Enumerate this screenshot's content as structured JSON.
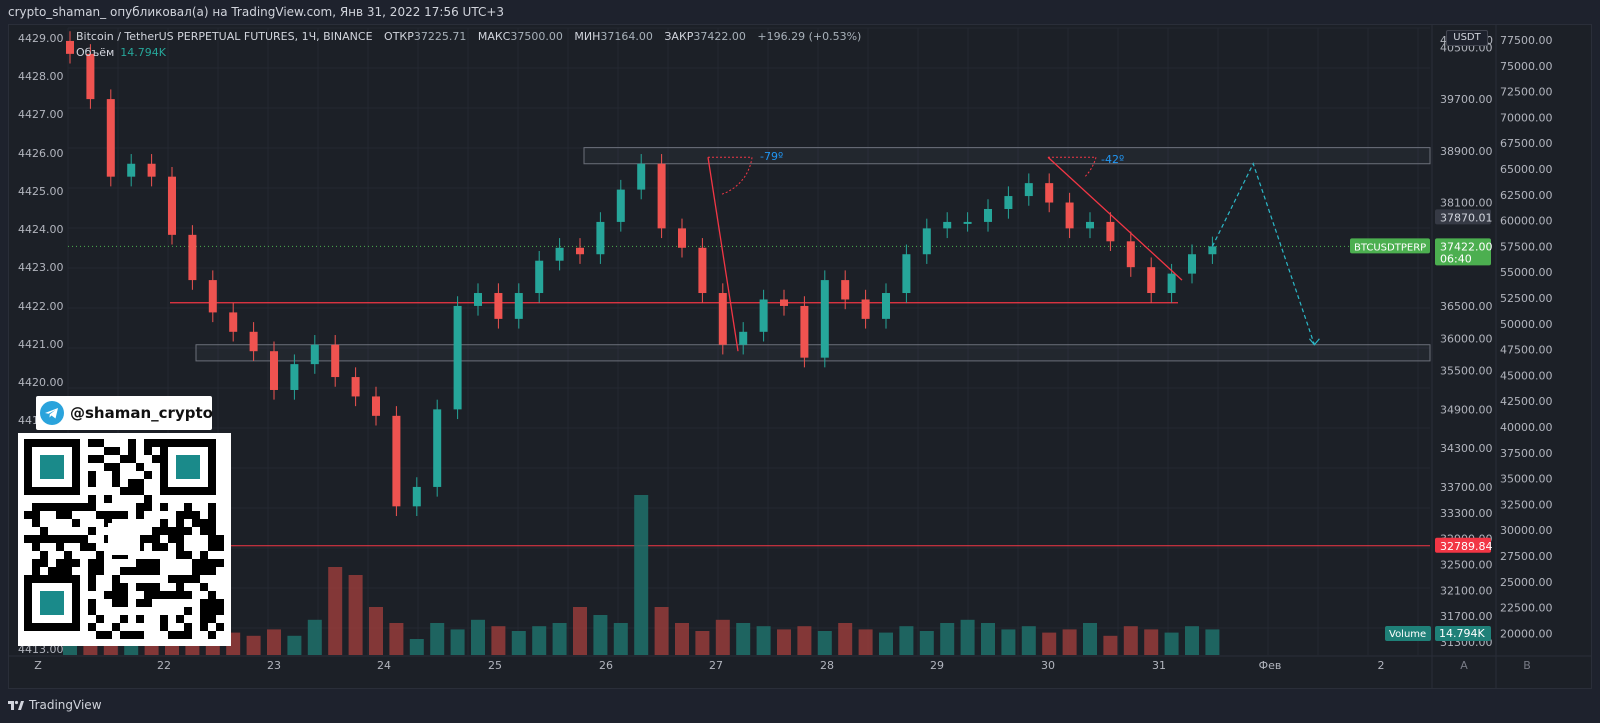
{
  "caption": "crypto_shaman_ опубликовал(а) на TradingView.com, Янв 31, 2022 17:56 UTC+3",
  "legend": {
    "symbol": "Bitcoin / TetherUS PERPETUAL FUTURES, 1Ч, BINANCE",
    "open_label": "ОТКР",
    "open_value": "37225.71",
    "high_label": "МАКС",
    "high_value": "37500.00",
    "low_label": "МИН",
    "low_value": "37164.00",
    "close_label": "ЗАКР",
    "close_value": "37422.00",
    "change": "+196.29 (+0.53%)",
    "volume_label": "Объём",
    "volume_value": "14.794K"
  },
  "currency_badge": "USDT",
  "telegram_handle": "@shaman_crypto",
  "footer_brand": "TradingView",
  "colors": {
    "up": "#26a69a",
    "down": "#ef5350",
    "volume_up": "#1f6b67",
    "volume_down": "#8f3a3a",
    "level_red": "#f23645",
    "annotation_blue": "#2196f3",
    "price_green": "#4caf50",
    "projection": "#2bb8c8"
  },
  "chart_data": {
    "type": "candlestick",
    "title": "Bitcoin / TetherUS PERPETUAL FUTURES, 1Ч, BINANCE",
    "x_ticks": [
      "Z",
      "22",
      "23",
      "24",
      "25",
      "26",
      "27",
      "28",
      "29",
      "30",
      "31",
      "Фев",
      "2"
    ],
    "pane_labels": [
      "A",
      "B"
    ],
    "left_axis_ticks": [
      "4429.00",
      "4428.00",
      "4427.00",
      "4426.00",
      "4425.00",
      "4424.00",
      "4423.00",
      "4422.00",
      "4421.00",
      "4420.00",
      "4419.00",
      "4413.00"
    ],
    "price_axis_ticks": [
      "40500.00",
      "39700.00",
      "38900.00",
      "38100.00",
      "37870.01",
      "36500.00",
      "36000.00",
      "35500.00",
      "34900.00",
      "34300.00",
      "33700.00",
      "33300.00",
      "32900.00",
      "32500.00",
      "32100.00",
      "31700.00",
      "31300.00"
    ],
    "price_axis_top_label": "4",
    "right_axis_ticks": [
      "77500.00",
      "75000.00",
      "72500.00",
      "70000.00",
      "67500.00",
      "65000.00",
      "62500.00",
      "60000.00",
      "57500.00",
      "55000.00",
      "52500.00",
      "50000.00",
      "47500.00",
      "45000.00",
      "42500.00",
      "40000.00",
      "37500.00",
      "35000.00",
      "32500.00",
      "30000.00",
      "27500.00",
      "25000.00",
      "22500.00",
      "20000.00"
    ],
    "right_axis_top_label": "0",
    "price_labels": {
      "current_symbol": "BTCUSDTPERP",
      "current_price": "37422.00",
      "countdown": "06:40",
      "level_label": "37870.01",
      "support_label": "32789.84"
    },
    "volume_label": "Volume",
    "volume_value": "14.794K",
    "annotations": [
      "-79º",
      "-42º"
    ],
    "levels": {
      "resistance_zone_top": 38950,
      "resistance_zone_bottom": 38700,
      "red_level": 36550,
      "support_zone_top": 35900,
      "support_zone_bottom": 35650,
      "bottom_red_level": 32789.84
    },
    "price_series": [
      [
        0,
        40400
      ],
      [
        1,
        39700
      ],
      [
        2,
        38500
      ],
      [
        3,
        38700
      ],
      [
        4,
        38500
      ],
      [
        5,
        37600
      ],
      [
        6,
        36900
      ],
      [
        7,
        36400
      ],
      [
        8,
        36100
      ],
      [
        9,
        35800
      ],
      [
        10,
        35200
      ],
      [
        11,
        35600
      ],
      [
        12,
        35900
      ],
      [
        13,
        35400
      ],
      [
        14,
        35100
      ],
      [
        15,
        34800
      ],
      [
        16,
        33400
      ],
      [
        17,
        33700
      ],
      [
        18,
        34900
      ],
      [
        19,
        36500
      ],
      [
        20,
        36700
      ],
      [
        21,
        36300
      ],
      [
        22,
        36700
      ],
      [
        23,
        37200
      ],
      [
        24,
        37400
      ],
      [
        25,
        37300
      ],
      [
        26,
        37800
      ],
      [
        27,
        38300
      ],
      [
        28,
        38700
      ],
      [
        29,
        37700
      ],
      [
        30,
        37400
      ],
      [
        31,
        36700
      ],
      [
        32,
        35900
      ],
      [
        33,
        36100
      ],
      [
        34,
        36600
      ],
      [
        35,
        36500
      ],
      [
        36,
        35700
      ],
      [
        37,
        36900
      ],
      [
        38,
        36600
      ],
      [
        39,
        36300
      ],
      [
        40,
        36700
      ],
      [
        41,
        37300
      ],
      [
        42,
        37700
      ],
      [
        43,
        37800
      ],
      [
        44,
        37800
      ],
      [
        45,
        38000
      ],
      [
        46,
        38200
      ],
      [
        47,
        38400
      ],
      [
        48,
        38100
      ],
      [
        49,
        37700
      ],
      [
        50,
        37800
      ],
      [
        51,
        37500
      ],
      [
        52,
        37100
      ],
      [
        53,
        36700
      ],
      [
        54,
        37000
      ],
      [
        55,
        37300
      ],
      [
        56,
        37422
      ]
    ],
    "projection": [
      [
        56,
        37422
      ],
      [
        58,
        38700
      ],
      [
        61,
        35900
      ]
    ],
    "volume": [
      0.25,
      0.15,
      0.12,
      0.2,
      0.12,
      0.1,
      0.18,
      0.15,
      0.14,
      0.12,
      0.16,
      0.12,
      0.22,
      0.55,
      0.5,
      0.3,
      0.2,
      0.1,
      0.2,
      0.16,
      0.22,
      0.18,
      0.15,
      0.18,
      0.2,
      0.3,
      0.25,
      0.2,
      1.0,
      0.3,
      0.2,
      0.15,
      0.22,
      0.2,
      0.18,
      0.16,
      0.18,
      0.15,
      0.2,
      0.16,
      0.14,
      0.18,
      0.15,
      0.2,
      0.22,
      0.2,
      0.16,
      0.18,
      0.14,
      0.16,
      0.2,
      0.12,
      0.18,
      0.16,
      0.14,
      0.18,
      0.16
    ]
  }
}
